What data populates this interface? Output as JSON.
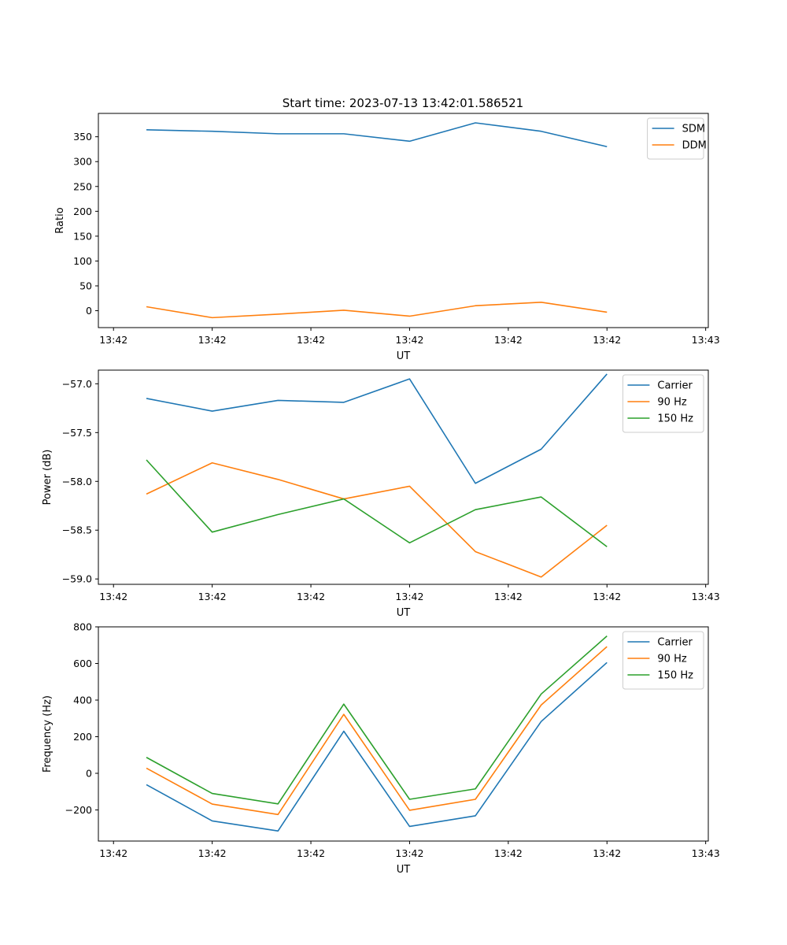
{
  "chart_data": [
    {
      "type": "line",
      "title": "Start time: 2023-07-13 13:42:01.586521",
      "xlabel": "UT",
      "ylabel": "Ratio",
      "x_tick_labels": [
        "13:42",
        "13:42",
        "13:42",
        "13:42",
        "13:42",
        "13:42",
        "13:43"
      ],
      "xlim": [
        -0.23,
        9.04
      ],
      "ylim": [
        -34,
        397
      ],
      "y_ticks": [
        0,
        50,
        100,
        150,
        200,
        250,
        300,
        350
      ],
      "y_tick_labels": [
        "0",
        "50",
        "100",
        "150",
        "200",
        "250",
        "300",
        "350"
      ],
      "legend_location": "top-right",
      "x": [
        0.5,
        1.5,
        2.5,
        3.5,
        4.5,
        5.5,
        6.5,
        7.5
      ],
      "series": [
        {
          "name": "SDM",
          "color": "#1f77b4",
          "values": [
            364,
            361,
            356,
            356,
            341,
            378,
            361,
            330
          ]
        },
        {
          "name": "DDM",
          "color": "#ff7f0e",
          "values": [
            8,
            -14,
            -7,
            1,
            -11,
            10,
            17,
            -3
          ]
        }
      ]
    },
    {
      "type": "line",
      "title": "",
      "xlabel": "UT",
      "ylabel": "Power (dB)",
      "x_tick_labels": [
        "13:42",
        "13:42",
        "13:42",
        "13:42",
        "13:42",
        "13:42",
        "13:43"
      ],
      "xlim": [
        -0.23,
        9.04
      ],
      "ylim": [
        -59.055,
        -56.86
      ],
      "y_ticks": [
        -59.0,
        -58.5,
        -58.0,
        -57.5,
        -57.0
      ],
      "y_tick_labels": [
        "−59.0",
        "−58.5",
        "−58.0",
        "−57.5",
        "−57.0"
      ],
      "legend_location": "top-right",
      "x": [
        0.5,
        1.5,
        2.5,
        3.5,
        4.5,
        5.5,
        6.5,
        7.5
      ],
      "series": [
        {
          "name": "Carrier",
          "color": "#1f77b4",
          "values": [
            -57.15,
            -57.28,
            -57.17,
            -57.19,
            -56.95,
            -58.02,
            -57.67,
            -56.9
          ]
        },
        {
          "name": "90 Hz",
          "color": "#ff7f0e",
          "values": [
            -58.13,
            -57.81,
            -57.98,
            -58.18,
            -58.05,
            -58.72,
            -58.98,
            -58.45
          ]
        },
        {
          "name": "150 Hz",
          "color": "#2ca02c",
          "values": [
            -57.78,
            -58.52,
            -58.34,
            -58.18,
            -58.63,
            -58.29,
            -58.16,
            -58.67
          ]
        }
      ]
    },
    {
      "type": "line",
      "title": "",
      "xlabel": "UT",
      "ylabel": "Frequency (Hz)",
      "x_tick_labels": [
        "13:42",
        "13:42",
        "13:42",
        "13:42",
        "13:42",
        "13:42",
        "13:43"
      ],
      "xlim": [
        -0.23,
        9.04
      ],
      "ylim": [
        -370,
        800
      ],
      "y_ticks": [
        -200,
        0,
        200,
        400,
        600,
        800
      ],
      "y_tick_labels": [
        "−200",
        "0",
        "200",
        "400",
        "600",
        "800"
      ],
      "legend_location": "top-right",
      "x": [
        0.5,
        1.5,
        2.5,
        3.5,
        4.5,
        5.5,
        6.5,
        7.5
      ],
      "series": [
        {
          "name": "Carrier",
          "color": "#1f77b4",
          "values": [
            -62,
            -260,
            -315,
            230,
            -290,
            -232,
            283,
            605
          ]
        },
        {
          "name": "90 Hz",
          "color": "#ff7f0e",
          "values": [
            28,
            -168,
            -225,
            322,
            -202,
            -142,
            373,
            692
          ]
        },
        {
          "name": "150 Hz",
          "color": "#2ca02c",
          "values": [
            87,
            -110,
            -167,
            378,
            -142,
            -85,
            433,
            750
          ]
        }
      ]
    }
  ]
}
